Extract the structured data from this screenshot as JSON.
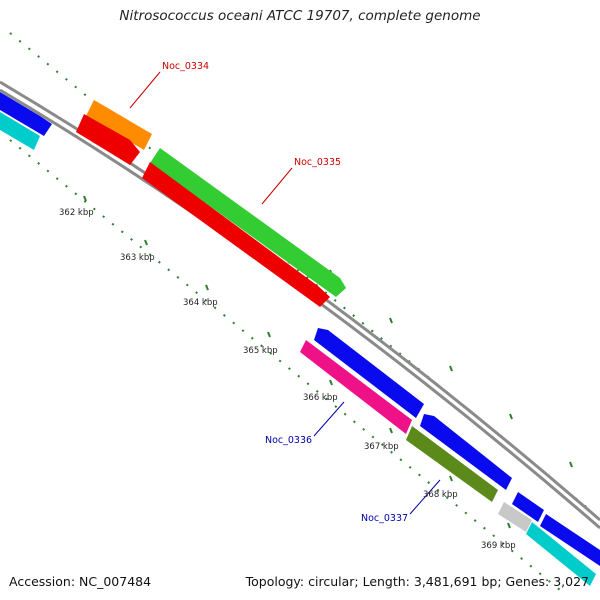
{
  "title": "Nitrosococcus oceani ATCC 19707, complete genome",
  "footer": {
    "accession": "Accession: NC_007484",
    "topology": "Topology: circular; Length: 3,481,691 bp; Genes: 3,027"
  },
  "colors": {
    "backbone": "#8c8c8c",
    "ticks": "#2e7d2e",
    "label_red": "#cc0000",
    "label_blue": "#0000aa"
  },
  "ticks": [
    {
      "label": "362 kbp"
    },
    {
      "label": "363 kbp"
    },
    {
      "label": "364 kbp"
    },
    {
      "label": "365 kbp"
    },
    {
      "label": "366 kbp"
    },
    {
      "label": "367 kbp"
    },
    {
      "label": "368 kbp"
    },
    {
      "label": "369 kbp"
    }
  ],
  "gene_labels": [
    {
      "text": "Noc_0334",
      "color": "#cc0000"
    },
    {
      "text": "Noc_0335",
      "color": "#cc0000"
    },
    {
      "text": "Noc_0336",
      "color": "#0000aa"
    },
    {
      "text": "Noc_0337",
      "color": "#0000aa"
    }
  ]
}
